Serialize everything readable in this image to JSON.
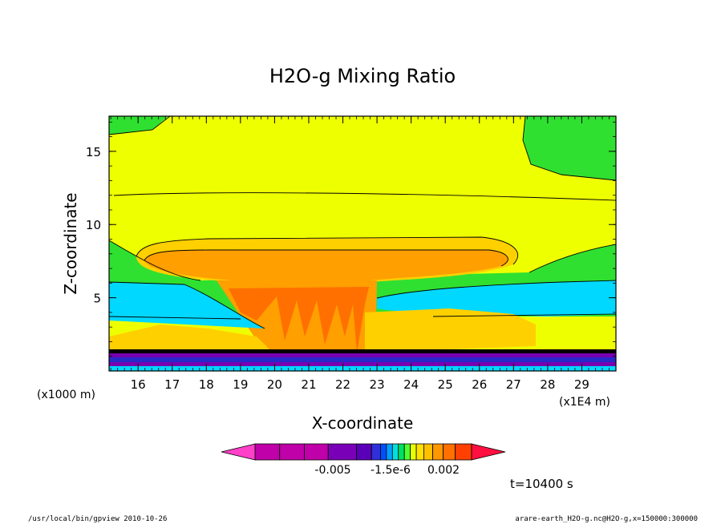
{
  "chart_data": {
    "type": "contour",
    "title": "H2O-g Mixing Ratio",
    "xlabel": "X-coordinate",
    "ylabel": "Z-coordinate",
    "x_unit": "(x1E4 m)",
    "y_unit": "(x1000 m)",
    "x_ticks": [
      16,
      17,
      18,
      19,
      20,
      21,
      22,
      23,
      24,
      25,
      26,
      27,
      28,
      29
    ],
    "y_ticks": [
      5,
      10,
      15
    ],
    "xlim": [
      15.15,
      30.0
    ],
    "ylim": [
      0.0,
      17.4
    ],
    "time_label": "t=10400 s",
    "colorbar": {
      "labels": [
        "-0.005",
        "-1.5e-6",
        "0.002"
      ],
      "colors": [
        "#c000a8",
        "#c000a8",
        "#c000a8",
        "#7a00b8",
        "#5a00b8",
        "#3030d8",
        "#0050ff",
        "#00a0ff",
        "#00e0e0",
        "#00e060",
        "#50ff30",
        "#e8ff00",
        "#ffe000",
        "#ffc000",
        "#ff9800",
        "#ff7000",
        "#ff4000"
      ],
      "left_end_color": "#ff40c8",
      "right_end_color": "#ff1040"
    },
    "contour_bands": [
      {
        "name": "yellow",
        "color": "#eeff00"
      },
      {
        "name": "green",
        "color": "#30e030"
      },
      {
        "name": "light-orange",
        "color": "#ffd000"
      },
      {
        "name": "orange",
        "color": "#ff9f00"
      },
      {
        "name": "dark-orange",
        "color": "#ff7000"
      },
      {
        "name": "cyan",
        "color": "#00d8ff"
      },
      {
        "name": "purple",
        "color": "#7800b0"
      },
      {
        "name": "blue",
        "color": "#2828c8"
      }
    ]
  },
  "footer": {
    "left": "/usr/local/bin/gpview  2010-10-26",
    "right": "arare-earth_H2O-g.nc@H2O-g,x=150000:300000"
  }
}
